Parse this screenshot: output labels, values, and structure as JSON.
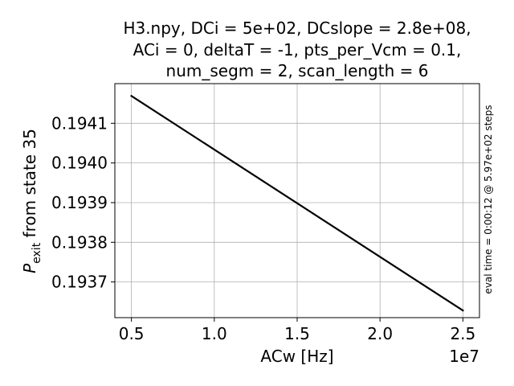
{
  "chart_data": {
    "type": "line",
    "title_lines": [
      "H3.npy, DCi = 5e+02,  DCslope = 2.8e+08,",
      "ACi = 0,  deltaT = -1, pts_per_Vcm = 0.1,",
      "num_segm = 2,  scan_length = 6"
    ],
    "xlabel": "ACw [Hz]",
    "ylabel_main": "P",
    "ylabel_sub": "exit",
    "ylabel_rest": " from state 35",
    "x_offset_label": "1e7",
    "side_annotation": "eval time = 0:00:12 @ 5.97e+02 steps",
    "xlim": [
      0.4,
      2.6
    ],
    "ylim": [
      0.19361,
      0.1942
    ],
    "xticks": [
      0.5,
      1.0,
      1.5,
      2.0,
      2.5
    ],
    "xtick_labels": [
      "0.5",
      "1.0",
      "1.5",
      "2.0",
      "2.5"
    ],
    "yticks": [
      0.1937,
      0.1938,
      0.1939,
      0.194,
      0.1941
    ],
    "ytick_labels": [
      "0.1937",
      "0.1938",
      "0.1939",
      "0.1940",
      "0.1941"
    ],
    "grid": true,
    "line_color": "#000000",
    "series": [
      {
        "x": [
          0.5,
          2.5
        ],
        "y": [
          0.194169,
          0.193628
        ]
      }
    ]
  }
}
